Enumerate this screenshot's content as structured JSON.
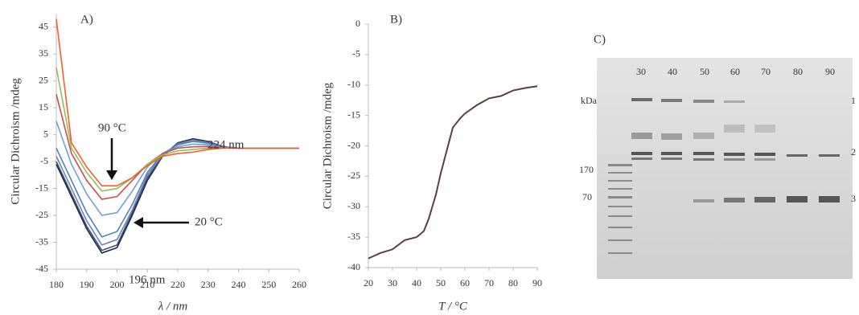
{
  "chart_data": [
    {
      "type": "line",
      "title": "A)",
      "y_label": "Circular Dichroism /mdeg",
      "x_label": "λ / nm",
      "xlim": [
        180,
        260
      ],
      "ylim": [
        -45,
        50
      ],
      "xticks": [
        180,
        190,
        200,
        210,
        220,
        230,
        240,
        250,
        260
      ],
      "yticks": [
        45,
        35,
        25,
        15,
        5,
        -5,
        -15,
        -25,
        -35,
        -45
      ],
      "x": [
        180,
        185,
        190,
        195,
        200,
        205,
        210,
        215,
        220,
        225,
        230,
        235,
        240,
        245,
        250,
        255,
        260
      ],
      "series": [
        {
          "color": "#1b2a49",
          "values": [
            -6,
            -18,
            -30,
            -39,
            -37,
            -25,
            -12,
            -3,
            2,
            3.5,
            2.5,
            0.5,
            0,
            0,
            0,
            0,
            0
          ]
        },
        {
          "color": "#3b4f7a",
          "values": [
            -5,
            -17,
            -29,
            -38,
            -36,
            -24,
            -11,
            -3,
            1.8,
            3.2,
            2.3,
            0.5,
            0,
            0,
            0,
            0,
            0
          ]
        },
        {
          "color": "#7384aa",
          "values": [
            -3,
            -15,
            -27,
            -36,
            -34,
            -23,
            -10,
            -2.5,
            1.5,
            3,
            2,
            0.4,
            0,
            0,
            0,
            0,
            0
          ]
        },
        {
          "color": "#4f81bd",
          "values": [
            0,
            -12,
            -24,
            -33,
            -31,
            -21,
            -9,
            -2,
            1.2,
            2.5,
            1.8,
            0.3,
            0,
            0,
            0,
            0,
            0
          ]
        },
        {
          "color": "#6fa0d6",
          "values": [
            10,
            -6,
            -17,
            -25,
            -24,
            -16,
            -7,
            -2,
            0.5,
            1.5,
            1.2,
            0.2,
            0,
            0,
            0,
            0,
            0
          ]
        },
        {
          "color": "#c0504d",
          "values": [
            20,
            -2,
            -12,
            -19,
            -18,
            -12,
            -6,
            -2,
            0,
            0.5,
            0.6,
            0.1,
            0,
            0,
            0,
            0,
            0
          ]
        },
        {
          "color": "#9bbb59",
          "values": [
            30,
            0,
            -9,
            -16,
            -15,
            -11,
            -6,
            -2.5,
            -1,
            -0.5,
            0,
            0,
            0,
            0,
            0,
            0,
            0
          ]
        },
        {
          "color": "#f0622d",
          "values": [
            48,
            2,
            -7,
            -14,
            -14,
            -11,
            -6.5,
            -3,
            -2,
            -1.5,
            -0.5,
            0,
            0,
            0,
            0,
            0,
            0
          ]
        }
      ],
      "annotations": [
        "90 °C",
        "20 °C",
        "224 nm",
        "196 nm"
      ]
    },
    {
      "type": "line",
      "title": "B)",
      "y_label": "Circular Dichroism /mdeg",
      "x_label": "T / °C",
      "xlim": [
        20,
        90
      ],
      "ylim": [
        -40,
        0
      ],
      "xticks": [
        20,
        30,
        40,
        50,
        60,
        70,
        80,
        90
      ],
      "yticks": [
        0,
        -5,
        -10,
        -15,
        -20,
        -25,
        -30,
        -35,
        -40
      ],
      "x": [
        20,
        25,
        30,
        35,
        40,
        43,
        45,
        48,
        50,
        53,
        55,
        58,
        60,
        65,
        70,
        75,
        80,
        85,
        90
      ],
      "series": [
        {
          "color": "#5a4038",
          "values": [
            -38.5,
            -37.6,
            -37,
            -35.5,
            -35,
            -34,
            -32,
            -28,
            -24.5,
            -20,
            -17,
            -15.5,
            -14.7,
            -13.3,
            -12.2,
            -11.8,
            -10.9,
            -10.5,
            -10.2
          ]
        }
      ],
      "annotations": []
    }
  ],
  "gel": {
    "title": "C)",
    "lanes": [
      "30",
      "40",
      "50",
      "60",
      "70",
      "80",
      "90"
    ],
    "unit": "kDa",
    "markers": [
      "170",
      "70"
    ],
    "bands": [
      "1",
      "2",
      "3"
    ]
  }
}
